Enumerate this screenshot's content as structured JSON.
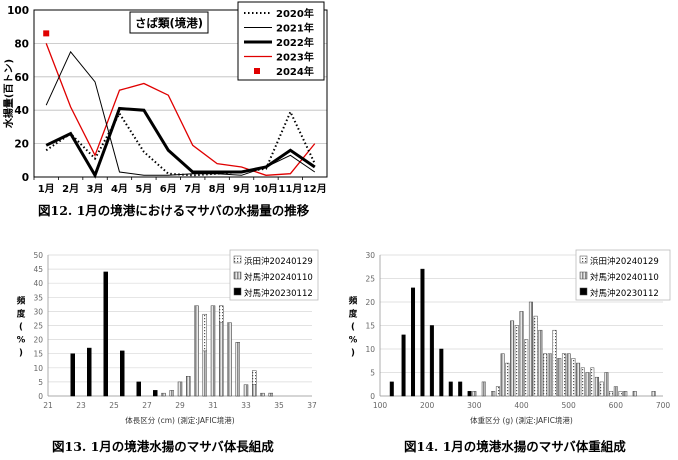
{
  "captions": {
    "fig12": "図12. 1月の境港におけるマサバの水揚量の推移",
    "fig13": "図13. 1月の境港水揚のマサバ体長組成",
    "fig14": "図14. 1月の境港水揚のマサバ体重組成"
  },
  "colors": {
    "y2023": "#e00000",
    "y2024": "#e00000",
    "black": "#000000"
  },
  "chart_data": [
    {
      "type": "line",
      "title": "さば類(境港)",
      "xlabel": "",
      "ylabel": "水揚量(百トン)",
      "ylim": [
        0,
        100
      ],
      "yticks": [
        0,
        20,
        40,
        60,
        80,
        100
      ],
      "categories": [
        "1月",
        "2月",
        "3月",
        "4月",
        "5月",
        "6月",
        "7月",
        "8月",
        "9月",
        "10月",
        "11月",
        "12月"
      ],
      "legend_position": "top-right",
      "series": [
        {
          "name": "2020年",
          "style": "dotted",
          "values": [
            16,
            26,
            11,
            38,
            15,
            2,
            1,
            2,
            3,
            5,
            39,
            8
          ]
        },
        {
          "name": "2021年",
          "style": "thin",
          "values": [
            43,
            75,
            57,
            3,
            1,
            1,
            2,
            2,
            1,
            6,
            13,
            3
          ]
        },
        {
          "name": "2022年",
          "style": "thick",
          "values": [
            19,
            26,
            1,
            41,
            40,
            16,
            3,
            3,
            3,
            6,
            16,
            6
          ]
        },
        {
          "name": "2023年",
          "style": "red",
          "values": [
            80,
            42,
            13,
            52,
            56,
            49,
            19,
            8,
            6,
            1,
            2,
            20
          ]
        },
        {
          "name": "2024年",
          "style": "redpoint",
          "values": [
            86,
            null,
            null,
            null,
            null,
            null,
            null,
            null,
            null,
            null,
            null,
            null
          ]
        }
      ]
    },
    {
      "type": "bar",
      "title": "",
      "xlabel": "体長区分 (cm) (測定:JAFIC境港)",
      "ylabel_chars": [
        "頻",
        "度",
        "(",
        "%",
        ")"
      ],
      "ylim": [
        0,
        50
      ],
      "yticks": [
        0,
        5,
        10,
        15,
        20,
        25,
        30,
        35,
        40,
        45,
        50
      ],
      "xlim": [
        21,
        37
      ],
      "xticks": [
        21,
        23,
        25,
        27,
        29,
        31,
        33,
        35,
        37
      ],
      "legend_position": "top-right",
      "series": [
        {
          "name": "浜田沖20240129",
          "pattern": "dotted",
          "x": [
            29.5,
            30.5,
            31.5,
            32.5,
            33.5,
            34.5
          ],
          "values": [
            5,
            29,
            32,
            19,
            9,
            1
          ]
        },
        {
          "name": "対馬沖20240110",
          "pattern": "hatched",
          "x": [
            28,
            28.5,
            29,
            29.5,
            30,
            30.5,
            31,
            31.5,
            32,
            32.5,
            33,
            33.5,
            34,
            34.5
          ],
          "values": [
            1,
            2,
            5,
            7,
            32,
            16,
            32,
            26,
            26,
            19,
            4,
            4,
            1,
            1
          ]
        },
        {
          "name": "対馬沖20230112",
          "pattern": "solid",
          "x": [
            22.5,
            23.5,
            24.5,
            25.5,
            26.5,
            27.5
          ],
          "values": [
            15,
            17,
            44,
            16,
            5,
            2
          ]
        }
      ]
    },
    {
      "type": "bar",
      "title": "",
      "xlabel": "体重区分 (g) (測定:JAFIC境港)",
      "ylabel_chars": [
        "頻",
        "度",
        "(",
        "%",
        ")"
      ],
      "ylim": [
        0,
        30
      ],
      "yticks": [
        0,
        5,
        10,
        15,
        20,
        25,
        30
      ],
      "xlim": [
        100,
        700
      ],
      "xticks": [
        100,
        200,
        300,
        400,
        500,
        600,
        700
      ],
      "legend_position": "top-right",
      "series": [
        {
          "name": "浜田沖20240129",
          "pattern": "dotted",
          "x": [
            350,
            370,
            390,
            410,
            430,
            450,
            470,
            490,
            510,
            530,
            550,
            570,
            590,
            610
          ],
          "values": [
            2,
            7,
            15,
            12,
            17,
            9,
            14,
            9,
            8,
            6,
            6,
            3,
            1,
            1
          ]
        },
        {
          "name": "対馬沖20240110",
          "pattern": "hatched",
          "x": [
            300,
            320,
            340,
            360,
            380,
            400,
            420,
            440,
            460,
            480,
            500,
            520,
            540,
            560,
            580,
            600,
            620,
            640,
            680
          ],
          "values": [
            1,
            3,
            1,
            9,
            16,
            18,
            20,
            14,
            9,
            8,
            9,
            7,
            5,
            4,
            5,
            2,
            1,
            1,
            1
          ]
        },
        {
          "name": "対馬沖20230112",
          "pattern": "solid",
          "x": [
            125,
            150,
            170,
            190,
            210,
            230,
            250,
            270,
            290
          ],
          "values": [
            3,
            13,
            23,
            27,
            15,
            10,
            3,
            3,
            1
          ]
        }
      ]
    }
  ]
}
